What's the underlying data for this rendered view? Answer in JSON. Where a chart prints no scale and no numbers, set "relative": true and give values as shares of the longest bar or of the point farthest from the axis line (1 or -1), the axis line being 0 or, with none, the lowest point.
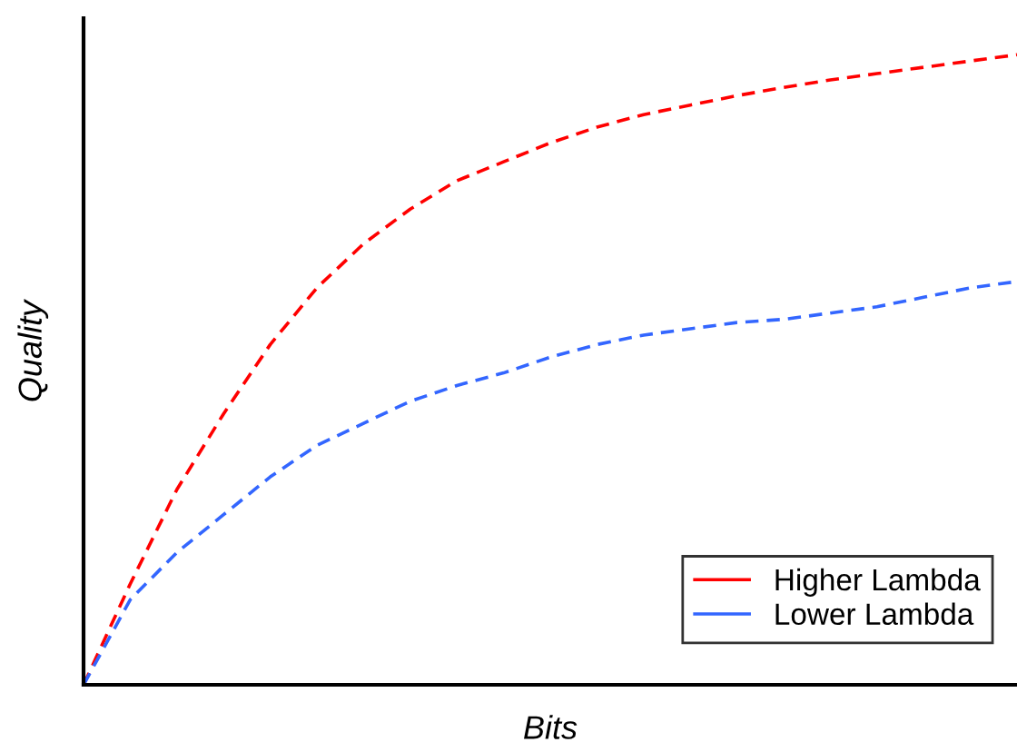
{
  "chart_data": {
    "type": "line",
    "relative": true,
    "xlabel": "Bits",
    "ylabel": "Quality",
    "line_style": "dashed",
    "legend": "bottom right",
    "categories": [
      null,
      null,
      null,
      null,
      null,
      null,
      null,
      null,
      null,
      null,
      null,
      null,
      null,
      null,
      null,
      null,
      null,
      null,
      null,
      null,
      null
    ],
    "series": [
      {
        "name": "Higher Lambda",
        "color": "#ff0000",
        "values": [
          0,
          0.16,
          0.31,
          0.43,
          0.54,
          0.63,
          0.7,
          0.755,
          0.8,
          0.83,
          0.86,
          0.885,
          0.905,
          0.92,
          0.935,
          0.948,
          0.96,
          0.97,
          0.98,
          0.99,
          1.0
        ]
      },
      {
        "name": "Lower Lambda",
        "color": "#3366ff",
        "values": [
          0,
          0.135,
          0.21,
          0.27,
          0.33,
          0.38,
          0.415,
          0.45,
          0.475,
          0.495,
          0.52,
          0.54,
          0.555,
          0.565,
          0.575,
          0.58,
          0.59,
          0.6,
          0.615,
          0.63,
          0.64
        ]
      }
    ]
  }
}
